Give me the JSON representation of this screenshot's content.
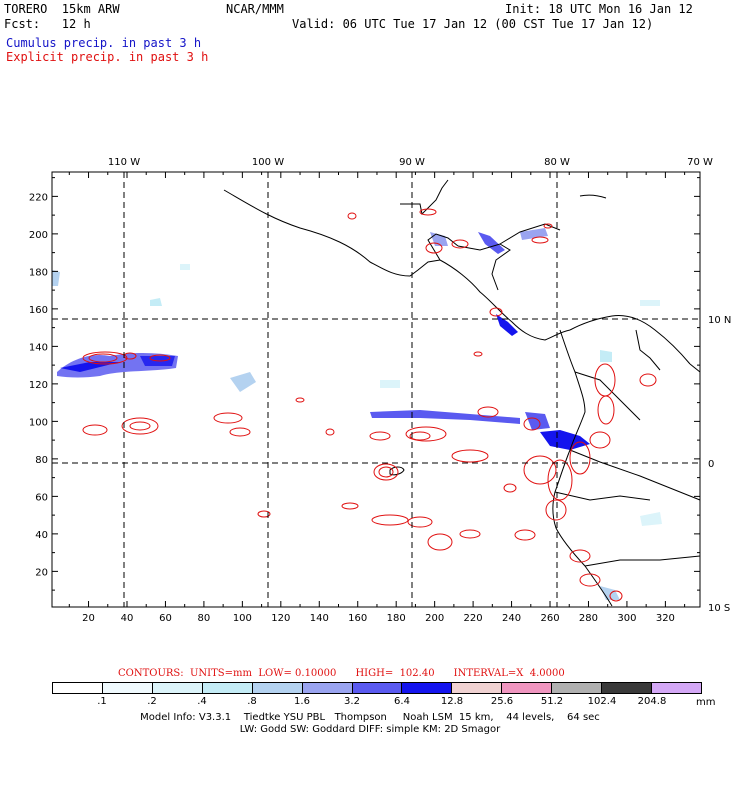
{
  "header": {
    "model": "TORERO  15km ARW",
    "org": "NCAR/MMM",
    "init": "Init: 18 UTC Mon 16 Jan 12",
    "fcst": "Fcst:   12 h",
    "valid": "Valid: 06 UTC Tue 17 Jan 12 (00 CST Tue 17 Jan 12)",
    "legend_cumulus": "Cumulus precip. in past 3 h",
    "legend_explicit": "Explicit precip. in past 3 h"
  },
  "map": {
    "lon_labels": [
      "110 W",
      "100 W",
      "90 W",
      "80 W",
      "70 W"
    ],
    "lat_labels": [
      "10 N",
      "0",
      "10 S"
    ],
    "x_ticks": [
      "20",
      "40",
      "60",
      "80",
      "100",
      "120",
      "140",
      "160",
      "180",
      "200",
      "220",
      "240",
      "260",
      "280",
      "300",
      "320"
    ],
    "y_ticks": [
      "20",
      "40",
      "60",
      "80",
      "100",
      "120",
      "140",
      "160",
      "180",
      "200",
      "220"
    ],
    "colors": {
      "cumulus": "#1414c8",
      "explicit": "#e01010",
      "coast": "#000000"
    }
  },
  "contours": "CONTOURS:  UNITS=mm  LOW= 0.10000      HIGH=  102.40      INTERVAL=X  4.0000",
  "scale": {
    "labels": [
      ".1",
      ".2",
      ".4",
      ".8",
      "1.6",
      "3.2",
      "6.4",
      "12.8",
      "25.6",
      "51.2",
      "102.4",
      "204.8"
    ],
    "colors": [
      "#ffffff",
      "#f0fafe",
      "#dcf4fa",
      "#c4ecf6",
      "#b4d2f0",
      "#9aa4f0",
      "#5a5af0",
      "#1414ee",
      "#f0d2d2",
      "#f096c0",
      "#b0b0b0",
      "#3a3a3a",
      "#d4a8f6"
    ],
    "units": "mm"
  },
  "model_info_1": "Model Info: V3.3.1    Tiedtke YSU PBL   Thompson     Noah LSM  15 km,    44 levels,    64 sec",
  "model_info_2": "LW: Godd SW: Goddard DIFF: simple KM: 2D Smagor"
}
